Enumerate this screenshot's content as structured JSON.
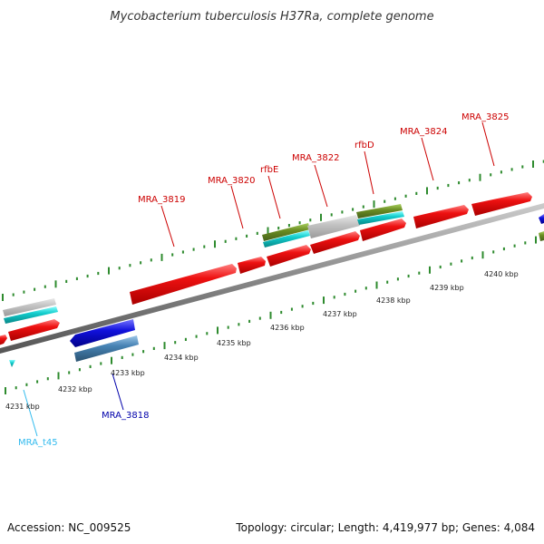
{
  "header": {
    "title": "Mycobacterium tuberculosis H37Ra, complete genome"
  },
  "footer": {
    "accession": "Accession: NC_009525",
    "summary": "Topology: circular; Length: 4,419,977 bp; Genes: 4,084"
  },
  "colors": {
    "cds": "#ee1111",
    "gene_grey": "#c0c0c0",
    "gene_cyan": "#11cccc",
    "gene_olive": "#6b8e23",
    "gene_blue": "#1111dd",
    "gene_steel": "#4682b4",
    "trna": "#33bbee",
    "backbone": "#888888",
    "tick": "#2e8b2e",
    "label_forward": "#cc0000",
    "label_reverse": "#0000aa",
    "label_trna": "#33bbee"
  },
  "scale_labels": [
    "4231 kbp",
    "4232 kbp",
    "4233 kbp",
    "4234 kbp",
    "4235 kbp",
    "4236 kbp",
    "4237 kbp",
    "4238 kbp",
    "4239 kbp",
    "4240 kbp"
  ],
  "gene_labels": [
    {
      "id": "MRA_3819",
      "text": "MRA_3819",
      "strand": "forward"
    },
    {
      "id": "MRA_3820",
      "text": "MRA_3820",
      "strand": "forward"
    },
    {
      "id": "rfbE",
      "text": "rfbE",
      "strand": "forward"
    },
    {
      "id": "MRA_3822",
      "text": "MRA_3822",
      "strand": "forward"
    },
    {
      "id": "rfbD",
      "text": "rfbD",
      "strand": "forward"
    },
    {
      "id": "MRA_3824",
      "text": "MRA_3824",
      "strand": "forward"
    },
    {
      "id": "MRA_3825",
      "text": "MRA_3825",
      "strand": "forward"
    },
    {
      "id": "MRA_3818",
      "text": "MRA_3818",
      "strand": "reverse"
    },
    {
      "id": "MRA_t45",
      "text": "MRA_t45",
      "strand": "trna"
    }
  ]
}
